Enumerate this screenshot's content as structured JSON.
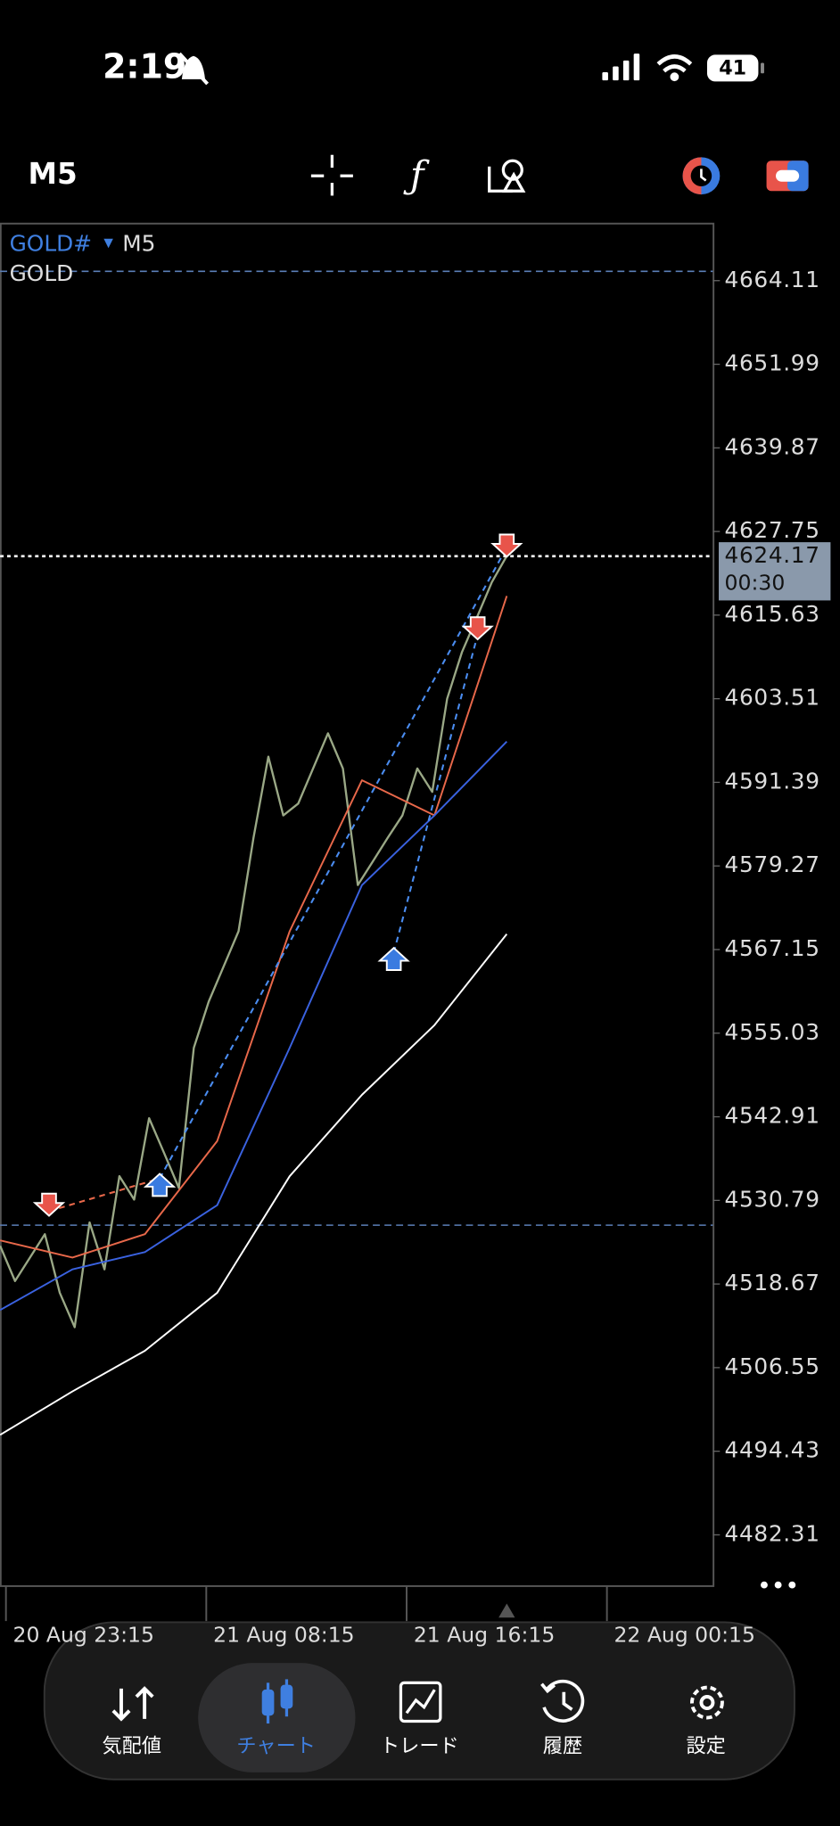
{
  "status_bar": {
    "time": "2:19",
    "battery": "41"
  },
  "toolbar": {
    "timeframe": "M5"
  },
  "chart_data": {
    "type": "line",
    "symbol": "GOLD#",
    "timeframe": "M5",
    "description": "GOLD",
    "ylim": [
      4474.88,
      4672.38
    ],
    "yticks": [
      4664.11,
      4651.99,
      4639.87,
      4627.75,
      4615.63,
      4603.51,
      4591.39,
      4579.27,
      4567.15,
      4555.03,
      4542.91,
      4530.79,
      4518.67,
      4506.55,
      4494.43,
      4482.31
    ],
    "x_labels": [
      "20 Aug 23:15",
      "21 Aug 08:15",
      "21 Aug 16:15",
      "22 Aug 00:15"
    ],
    "series": [
      {
        "color": "#9aa886",
        "values": [
          4524.2,
          4519.1,
          4522.5,
          4525.9,
          4517.4,
          4512.4,
          4527.6,
          4520.8,
          4534.3,
          4530.9,
          4542.7,
          4537.7,
          4532.6,
          4552.9,
          4559.6,
          4564.7,
          4569.8,
          4583.3,
          4595.1,
          4586.6,
          4588.3,
          4593.4,
          4598.5,
          4593.4,
          4576.5,
          4579.9,
          4583.3,
          4586.6,
          4593.4,
          4590.0,
          4603.5,
          4610.3,
          4615.3,
          4620.4,
          4624.2
        ]
      },
      {
        "color": "#e8684a",
        "values": [
          4525.0,
          4522.5,
          4525.9,
          4539.4,
          4569.8,
          4591.7,
          4586.6,
          4618.4
        ]
      },
      {
        "color": "#3a62e0",
        "values": [
          4514.9,
          4520.8,
          4523.3,
          4530.1,
          4552.9,
          4576.5,
          4586.6,
          4597.3
        ]
      },
      {
        "color": "#ffffff",
        "values": [
          4496.8,
          4503.1,
          4509.0,
          4517.4,
          4534.3,
          4546.1,
          4556.2,
          4569.4
        ]
      }
    ],
    "levels": [
      4665.46,
      4527.2
    ],
    "current_price": {
      "value": 4624.17,
      "countdown": "00:30"
    }
  },
  "tabs": [
    {
      "label": "気配値"
    },
    {
      "label": "チャート"
    },
    {
      "label": "トレード"
    },
    {
      "label": "履歴"
    },
    {
      "label": "設定"
    }
  ]
}
